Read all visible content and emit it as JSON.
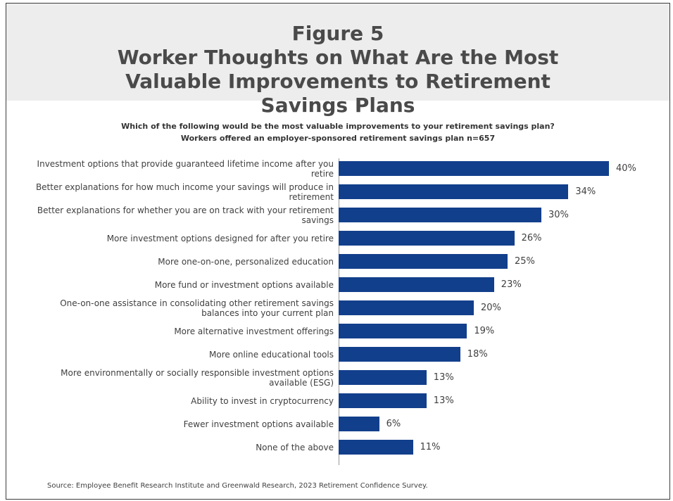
{
  "header": {
    "figure_label": "Figure 5",
    "title": "Worker Thoughts on What Are the Most Valuable Improvements to Retirement Savings Plans"
  },
  "subtitle": {
    "line1": "Which of the following would be the most valuable improvements to your retirement savings plan?",
    "line2": "Workers offered an employer-sponsored retirement savings plan n=657"
  },
  "source": "Source: Employee Benefit Research Institute and Greenwald Research, 2023 Retirement Confidence Survey.",
  "colors": {
    "bar": "#123f8c",
    "header_bg": "#ededed"
  },
  "chart_data": {
    "type": "bar",
    "orientation": "horizontal",
    "categories": [
      "Investment options that provide guaranteed lifetime income after you retire",
      "Better explanations for how much income your savings will produce in retirement",
      "Better explanations for whether you are on track with your retirement savings",
      "More investment options designed for after you retire",
      "More one-on-one, personalized education",
      "More fund or investment options available",
      "One-on-one assistance in consolidating other retirement savings balances into your current plan",
      "More alternative investment offerings",
      "More online educational tools",
      "More environmentally or socially responsible investment options available (ESG)",
      "Ability to invest in cryptocurrency",
      "Fewer investment options available",
      "None of the above"
    ],
    "values": [
      40,
      34,
      30,
      26,
      25,
      23,
      20,
      19,
      18,
      13,
      13,
      6,
      11
    ],
    "value_labels": [
      "40%",
      "34%",
      "30%",
      "26%",
      "25%",
      "23%",
      "20%",
      "19%",
      "18%",
      "13%",
      "13%",
      "6%",
      "11%"
    ],
    "xlim": [
      0,
      40
    ],
    "grid": false,
    "legend": "none"
  }
}
